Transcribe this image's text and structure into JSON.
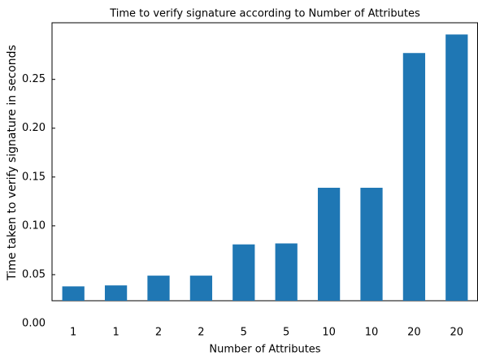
{
  "chart_data": {
    "type": "bar",
    "title": "Time to verify signature according to Number of Attributes",
    "xlabel": "Number of Attributes",
    "ylabel": "Time taken to verify signature in seconds",
    "categories": [
      "1",
      "1",
      "2",
      "2",
      "5",
      "5",
      "10",
      "10",
      "20",
      "20"
    ],
    "values": [
      0.038,
      0.039,
      0.049,
      0.049,
      0.081,
      0.082,
      0.139,
      0.139,
      0.277,
      0.296
    ],
    "color": "#1f77b4",
    "ylim": [
      0.0233,
      0.308
    ],
    "yticks": [
      {
        "value": 0,
        "label": "0.00"
      },
      0.05,
      {
        "value": 0.1,
        "label": "0.10"
      },
      0.15,
      {
        "value": 0.2,
        "label": "0.20"
      },
      0.25
    ],
    "grid": false
  }
}
